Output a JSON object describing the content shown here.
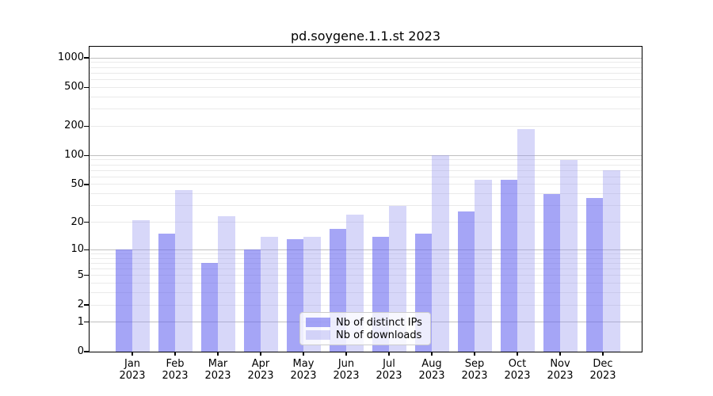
{
  "chart_data": {
    "type": "bar",
    "title": "pd.soygene.1.1.st 2023",
    "categories": [
      "Jan",
      "Feb",
      "Mar",
      "Apr",
      "May",
      "Jun",
      "Jul",
      "Aug",
      "Sep",
      "Oct",
      "Nov",
      "Dec"
    ],
    "x_sublabel": "2023",
    "series": [
      {
        "name": "Nb of distinct IPs",
        "color": "#6464F094",
        "values": [
          10,
          15,
          7,
          10,
          13,
          17,
          14,
          15,
          26,
          56,
          40,
          36
        ]
      },
      {
        "name": "Nb of downloads",
        "color": "#9696F061",
        "values": [
          21,
          44,
          23,
          14,
          14,
          24,
          30,
          100,
          56,
          185,
          90,
          70
        ]
      }
    ],
    "yscale": "log1p",
    "yticks": [
      0,
      1,
      2,
      5,
      10,
      20,
      50,
      100,
      200,
      500,
      1000
    ],
    "ylim": [
      0,
      1300
    ],
    "xlabel": "",
    "ylabel": "",
    "grid": "major+minor horizontal",
    "legend_position": "lower center"
  }
}
